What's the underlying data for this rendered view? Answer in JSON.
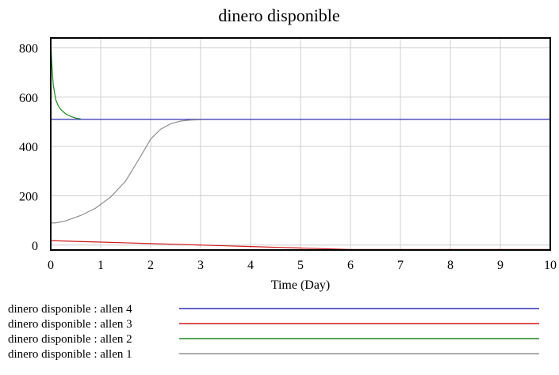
{
  "chart_data": {
    "type": "line",
    "title": "dinero disponible",
    "xlabel": "Time (Day)",
    "ylabel": "",
    "xlim": [
      0,
      10
    ],
    "ylim": [
      -20,
      840
    ],
    "x_ticks": [
      0,
      1,
      2,
      3,
      4,
      5,
      6,
      7,
      8,
      9,
      10
    ],
    "y_ticks": [
      0,
      200,
      400,
      600,
      800
    ],
    "grid": true,
    "legend_position": "bottom",
    "series": [
      {
        "name": "dinero disponible : allen 4",
        "color": "#2f2fb5",
        "points": [
          [
            0,
            510
          ],
          [
            10,
            510
          ]
        ]
      },
      {
        "name": "dinero disponible : allen 3",
        "color": "#d11919",
        "points": [
          [
            0,
            18
          ],
          [
            0.5,
            15
          ],
          [
            1,
            12
          ],
          [
            1.5,
            9
          ],
          [
            2,
            6
          ],
          [
            2.5,
            3
          ],
          [
            3,
            0
          ],
          [
            3.5,
            -3
          ],
          [
            4,
            -6
          ],
          [
            4.5,
            -9
          ],
          [
            5,
            -12
          ],
          [
            5.5,
            -15
          ],
          [
            6,
            -18
          ],
          [
            7,
            -18
          ],
          [
            8,
            -18
          ],
          [
            9,
            -18
          ],
          [
            10,
            -18
          ]
        ]
      },
      {
        "name": "dinero disponible : allen 2",
        "color": "#1f8a1f",
        "points": [
          [
            0,
            820
          ],
          [
            0.02,
            740
          ],
          [
            0.05,
            650
          ],
          [
            0.1,
            590
          ],
          [
            0.15,
            565
          ],
          [
            0.2,
            550
          ],
          [
            0.3,
            532
          ],
          [
            0.4,
            522
          ],
          [
            0.5,
            515
          ],
          [
            0.6,
            512
          ]
        ]
      },
      {
        "name": "dinero disponible : allen 1",
        "color": "#8f8f8f",
        "points": [
          [
            0,
            90
          ],
          [
            0.1,
            90
          ],
          [
            0.3,
            98
          ],
          [
            0.6,
            120
          ],
          [
            0.9,
            150
          ],
          [
            1.2,
            195
          ],
          [
            1.5,
            260
          ],
          [
            1.8,
            360
          ],
          [
            2.0,
            430
          ],
          [
            2.2,
            470
          ],
          [
            2.4,
            492
          ],
          [
            2.6,
            503
          ],
          [
            2.8,
            507
          ],
          [
            3.0,
            508
          ]
        ]
      }
    ]
  }
}
